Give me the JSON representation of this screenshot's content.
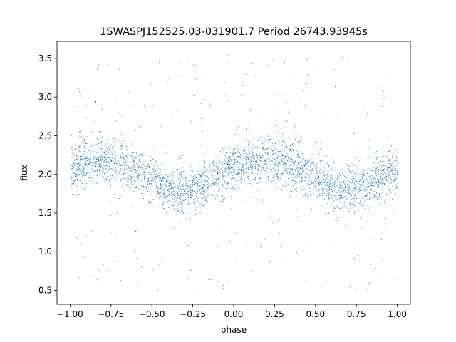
{
  "chart_data": {
    "type": "scatter",
    "title": "1SWASPJ152525.03-031901.7 Period 26743.93945s",
    "xlabel": "phase",
    "ylabel": "flux",
    "xlim": [
      -1.08,
      1.08
    ],
    "ylim": [
      0.32,
      3.72
    ],
    "xticks": [
      -1.0,
      -0.75,
      -0.5,
      -0.25,
      0.0,
      0.25,
      0.5,
      0.75,
      1.0
    ],
    "xtick_labels": [
      "−1.00",
      "−0.75",
      "−0.50",
      "−0.25",
      "0.00",
      "0.25",
      "0.50",
      "0.75",
      "1.00"
    ],
    "yticks": [
      0.5,
      1.0,
      1.5,
      2.0,
      2.5,
      3.0,
      3.5
    ],
    "ytick_labels": [
      "0.5",
      "1.0",
      "1.5",
      "2.0",
      "2.5",
      "3.0",
      "3.5"
    ],
    "grid": false,
    "marker_color": "#1f77b4",
    "series": [
      {
        "phase": [
          -1.0,
          -0.9,
          -0.8,
          -0.7,
          -0.6,
          -0.5,
          -0.4,
          -0.3,
          -0.2,
          -0.1,
          0.0,
          0.1,
          0.2,
          0.3,
          0.4,
          0.5,
          0.6,
          0.7,
          0.8,
          0.9,
          1.0
        ],
        "flux_median": [
          2.08,
          2.17,
          2.2,
          2.18,
          2.08,
          1.95,
          1.82,
          1.78,
          1.84,
          1.97,
          2.08,
          2.17,
          2.2,
          2.18,
          2.08,
          1.95,
          1.82,
          1.78,
          1.84,
          1.97,
          2.08
        ],
        "flux_spread_core": 0.15,
        "flux_spread_outliers": [
          0.5,
          3.55
        ]
      }
    ]
  }
}
